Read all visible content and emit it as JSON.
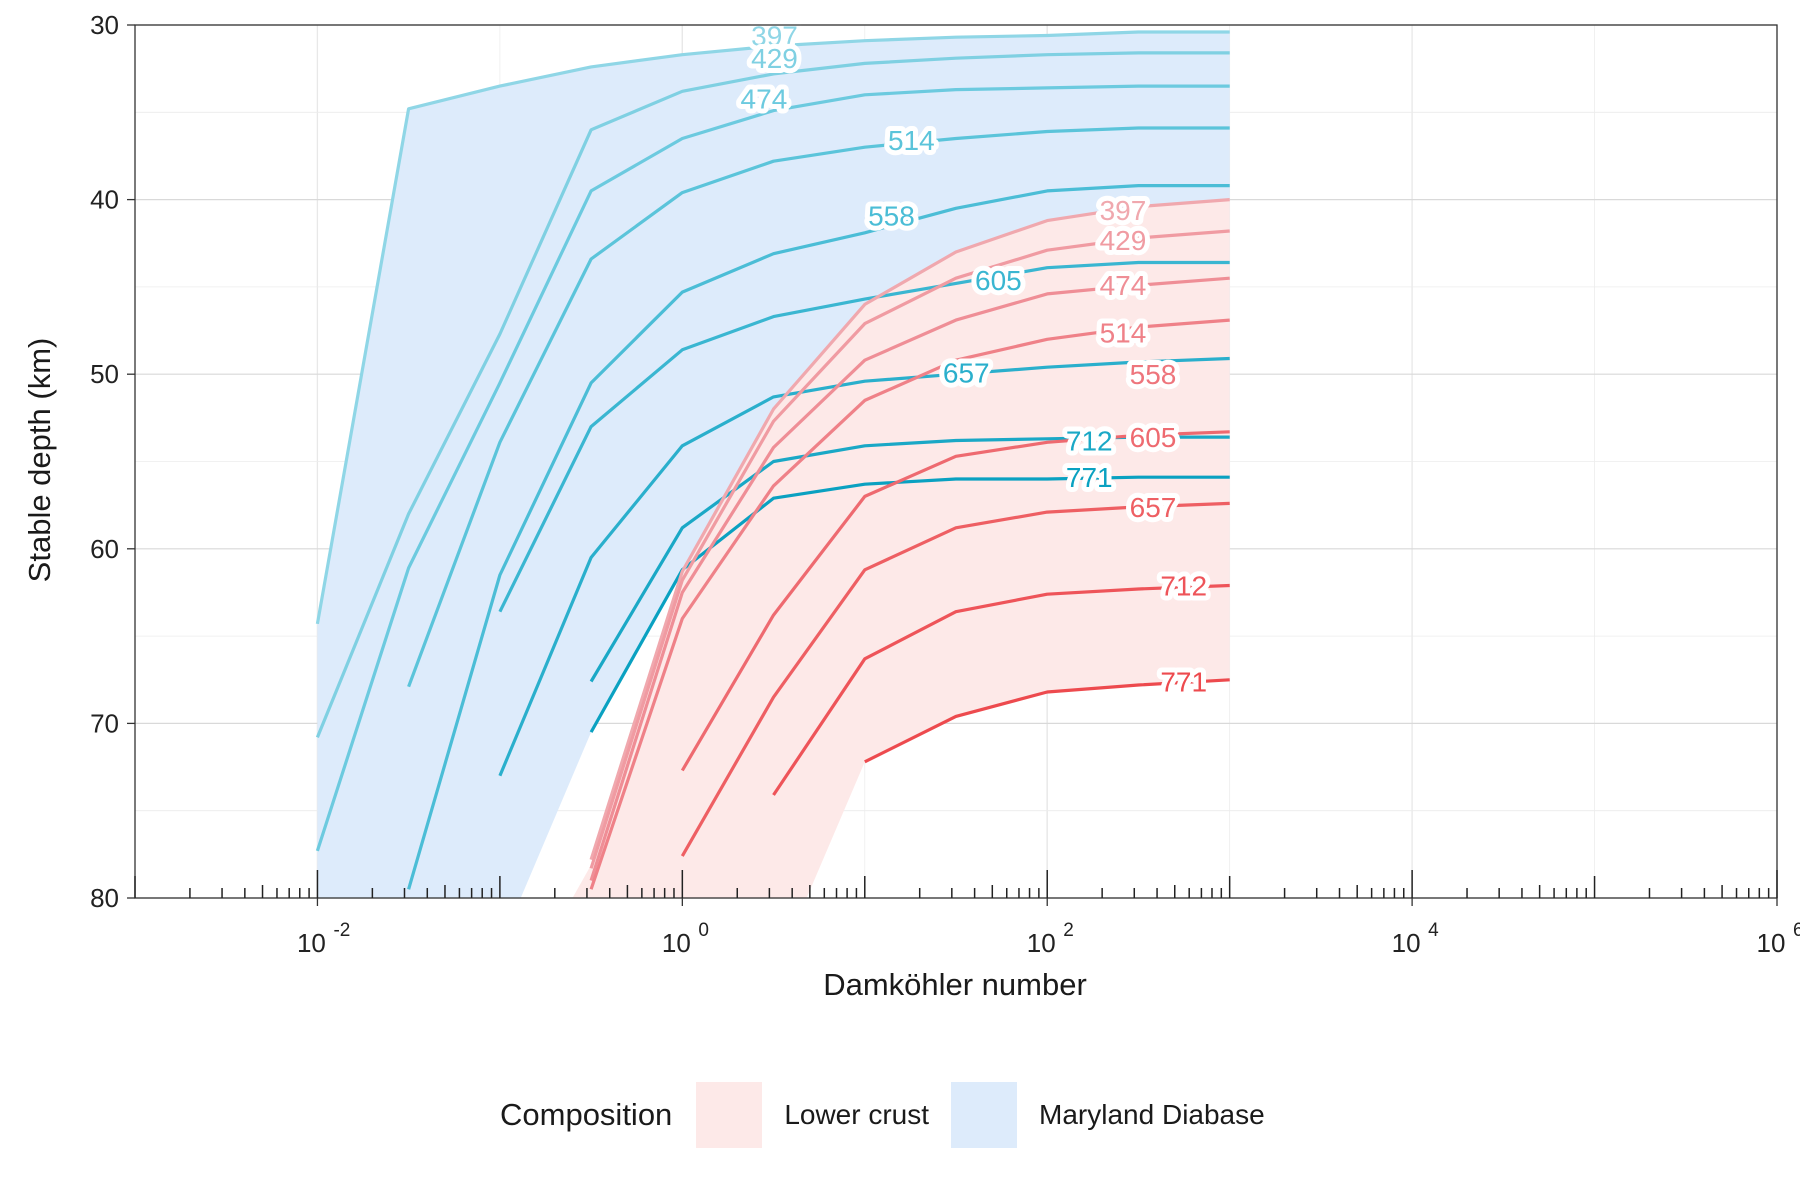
{
  "chart_data": {
    "type": "line",
    "xlabel": "Damköhler number",
    "ylabel": "Stable depth (km)",
    "xscale": "log",
    "xlim": [
      0.001,
      1000000
    ],
    "ylim": [
      80,
      30
    ],
    "y_reversed": true,
    "grid": true,
    "x_ticks": [
      {
        "base": "10",
        "exp": "-2",
        "value": 0.01
      },
      {
        "base": "10",
        "exp": "0",
        "value": 1
      },
      {
        "base": "10",
        "exp": "2",
        "value": 100
      },
      {
        "base": "10",
        "exp": "4",
        "value": 10000
      },
      {
        "base": "10",
        "exp": "6",
        "value": 1000000
      }
    ],
    "y_ticks": [
      30,
      40,
      50,
      60,
      70,
      80
    ],
    "legend": {
      "title": "Composition",
      "placement": "bottom",
      "items": [
        {
          "label": "Lower crust",
          "color": "#fde9e8"
        },
        {
          "label": "Maryland Diabase",
          "color": "#ddebfb"
        }
      ]
    },
    "bands": [
      {
        "composition": "Maryland Diabase",
        "color": "#ddebfb",
        "upper": [
          [
            0.01,
            80
          ],
          [
            0.01,
            64.3
          ],
          [
            0.0316,
            34.8
          ],
          [
            0.1,
            33.5
          ],
          [
            0.316,
            32.4
          ],
          [
            1,
            31.7
          ],
          [
            3.16,
            31.2
          ],
          [
            10,
            30.9
          ],
          [
            31.6,
            30.7
          ],
          [
            100,
            30.6
          ],
          [
            316,
            30.4
          ],
          [
            1000,
            30.4
          ]
        ],
        "lower": [
          [
            1000,
            56
          ],
          [
            316,
            56
          ],
          [
            100,
            56
          ],
          [
            31.6,
            56
          ],
          [
            10,
            56.3
          ],
          [
            3.16,
            57.1
          ],
          [
            1,
            61.2
          ],
          [
            0.316,
            70.5
          ],
          [
            0.13,
            80
          ]
        ]
      },
      {
        "composition": "Lower crust",
        "color": "#fde9e8",
        "upper": [
          [
            0.25,
            80
          ],
          [
            0.32,
            78
          ],
          [
            1,
            61.3
          ],
          [
            3.16,
            52
          ],
          [
            10,
            46
          ],
          [
            31.6,
            43
          ],
          [
            100,
            41.2
          ],
          [
            316,
            40.4
          ],
          [
            1000,
            40
          ]
        ],
        "lower": [
          [
            1000,
            67.5
          ],
          [
            316,
            67.8
          ],
          [
            100,
            68.2
          ],
          [
            31.6,
            69.6
          ],
          [
            10,
            72.2
          ],
          [
            4.8,
            80
          ]
        ]
      }
    ],
    "series": [
      {
        "name": "397",
        "composition": "Maryland Diabase",
        "color": "#8fd6e6",
        "label": "397",
        "label_at": [
          3.2,
          30.6
        ],
        "x": [
          0.01,
          0.0316,
          0.1,
          0.316,
          1,
          3.16,
          10,
          31.6,
          100,
          316,
          1000
        ],
        "y": [
          64.3,
          34.8,
          33.5,
          32.4,
          31.7,
          31.2,
          30.9,
          30.7,
          30.6,
          30.4,
          30.4
        ]
      },
      {
        "name": "429",
        "composition": "Maryland Diabase",
        "color": "#7fd0e2",
        "label": "429",
        "label_at": [
          3.2,
          31.9
        ],
        "x": [
          0.01,
          0.0316,
          0.1,
          0.316,
          1,
          3.16,
          10,
          31.6,
          100,
          316,
          1000
        ],
        "y": [
          70.8,
          58,
          47.7,
          36,
          33.8,
          32.8,
          32.2,
          31.9,
          31.7,
          31.6,
          31.6
        ]
      },
      {
        "name": "474",
        "composition": "Maryland Diabase",
        "color": "#6ccadf",
        "label": "474",
        "label_at": [
          2.8,
          34.2
        ],
        "x": [
          0.01,
          0.0316,
          0.1,
          0.316,
          1,
          3.16,
          10,
          31.6,
          100,
          316,
          1000
        ],
        "y": [
          77.3,
          61.1,
          50.5,
          39.5,
          36.5,
          34.9,
          34,
          33.7,
          33.6,
          33.5,
          33.5
        ]
      },
      {
        "name": "514",
        "composition": "Maryland Diabase",
        "color": "#5bc4da",
        "label": "514",
        "label_at": [
          18,
          36.6
        ],
        "x": [
          0.0316,
          0.1,
          0.316,
          1,
          3.16,
          10,
          31.6,
          100,
          316,
          1000
        ],
        "y": [
          67.9,
          53.9,
          43.4,
          39.6,
          37.8,
          37,
          36.5,
          36.1,
          35.9,
          35.9
        ]
      },
      {
        "name": "558",
        "composition": "Maryland Diabase",
        "color": "#4bbdd6",
        "label": "558",
        "label_at": [
          14,
          40.9
        ],
        "x": [
          0.0316,
          0.1,
          0.316,
          1,
          3.16,
          10,
          31.6,
          100,
          316,
          1000
        ],
        "y": [
          79.5,
          61.5,
          50.5,
          45.3,
          43.1,
          41.9,
          40.5,
          39.5,
          39.2,
          39.2
        ]
      },
      {
        "name": "605",
        "composition": "Maryland Diabase",
        "color": "#3ab6d1",
        "label": "605",
        "label_at": [
          54,
          44.6
        ],
        "x": [
          0.1,
          0.316,
          1,
          3.16,
          10,
          31.6,
          100,
          316,
          1000
        ],
        "y": [
          63.6,
          53,
          48.6,
          46.7,
          45.7,
          44.8,
          43.9,
          43.6,
          43.6
        ]
      },
      {
        "name": "657",
        "composition": "Maryland Diabase",
        "color": "#2aafcc",
        "label": "657",
        "label_at": [
          36,
          49.9
        ],
        "x": [
          0.1,
          0.316,
          1,
          3.16,
          10,
          31.6,
          100,
          316,
          1000
        ],
        "y": [
          73,
          60.5,
          54.1,
          51.3,
          50.4,
          50,
          49.6,
          49.3,
          49.1
        ]
      },
      {
        "name": "712",
        "composition": "Maryland Diabase",
        "color": "#1aa8c6",
        "label": "712",
        "label_at": [
          170,
          53.8
        ],
        "x": [
          0.316,
          1,
          3.16,
          10,
          31.6,
          100,
          316,
          1000
        ],
        "y": [
          67.6,
          58.8,
          55,
          54.1,
          53.8,
          53.7,
          53.6,
          53.6
        ]
      },
      {
        "name": "771",
        "composition": "Maryland Diabase",
        "color": "#0aa1c1",
        "label": "771",
        "label_at": [
          170,
          55.9
        ],
        "x": [
          0.316,
          1,
          3.16,
          10,
          31.6,
          100,
          316,
          1000
        ],
        "y": [
          70.5,
          61.2,
          57.1,
          56.3,
          56,
          56,
          55.9,
          55.9
        ]
      },
      {
        "name": "397",
        "composition": "Lower crust",
        "color": "#f0a8ae",
        "label": "397",
        "label_at": [
          260,
          40.6
        ],
        "x": [
          0.316,
          1,
          3.16,
          10,
          31.6,
          100,
          316,
          1000
        ],
        "y": [
          77.8,
          61.3,
          52,
          46,
          43,
          41.2,
          40.4,
          40
        ]
      },
      {
        "name": "429",
        "composition": "Lower crust",
        "color": "#f09ba2",
        "label": "429",
        "label_at": [
          260,
          42.3
        ],
        "x": [
          0.316,
          1,
          3.16,
          10,
          31.6,
          100,
          316,
          1000
        ],
        "y": [
          78.3,
          61.8,
          52.7,
          47.1,
          44.5,
          42.9,
          42.2,
          41.8
        ]
      },
      {
        "name": "474",
        "composition": "Lower crust",
        "color": "#ef8e96",
        "label": "474",
        "label_at": [
          260,
          44.9
        ],
        "x": [
          0.316,
          1,
          3.16,
          10,
          31.6,
          100,
          316,
          1000
        ],
        "y": [
          79,
          62.5,
          54.2,
          49.2,
          46.9,
          45.4,
          44.9,
          44.5
        ]
      },
      {
        "name": "514",
        "composition": "Lower crust",
        "color": "#ef8188",
        "label": "514",
        "label_at": [
          260,
          47.6
        ],
        "x": [
          0.316,
          1,
          3.16,
          10,
          31.6,
          100,
          316,
          1000
        ],
        "y": [
          79.5,
          64,
          56.4,
          51.5,
          49.2,
          48,
          47.3,
          46.9
        ]
      },
      {
        "name": "558",
        "composition": "Lower crust",
        "color": "#ee757c",
        "label": "558",
        "label_at": [
          380,
          50
        ]
      },
      {
        "name": "605",
        "composition": "Lower crust",
        "color": "#ee6a70",
        "label": "605",
        "label_at": [
          380,
          53.6
        ],
        "x": [
          1,
          3.16,
          10,
          31.6,
          100,
          316,
          1000
        ],
        "y": [
          72.7,
          63.8,
          57,
          54.7,
          53.9,
          53.5,
          53.3
        ]
      },
      {
        "name": "657",
        "composition": "Lower crust",
        "color": "#ee5f63",
        "label": "657",
        "label_at": [
          380,
          57.6
        ],
        "x": [
          1,
          3.16,
          10,
          31.6,
          100,
          316,
          1000
        ],
        "y": [
          77.6,
          68.5,
          61.2,
          58.8,
          57.9,
          57.6,
          57.4
        ]
      },
      {
        "name": "712",
        "composition": "Lower crust",
        "color": "#ee5459",
        "label": "712",
        "label_at": [
          560,
          62.1
        ],
        "x": [
          3.16,
          10,
          31.6,
          100,
          316,
          1000
        ],
        "y": [
          74.1,
          66.3,
          63.6,
          62.6,
          62.3,
          62.1
        ]
      },
      {
        "name": "771",
        "composition": "Lower crust",
        "color": "#ed4a4e",
        "label": "771",
        "label_at": [
          560,
          67.6
        ],
        "x": [
          10,
          31.6,
          100,
          316,
          1000
        ],
        "y": [
          72.2,
          69.6,
          68.2,
          67.8,
          67.5
        ]
      }
    ]
  }
}
